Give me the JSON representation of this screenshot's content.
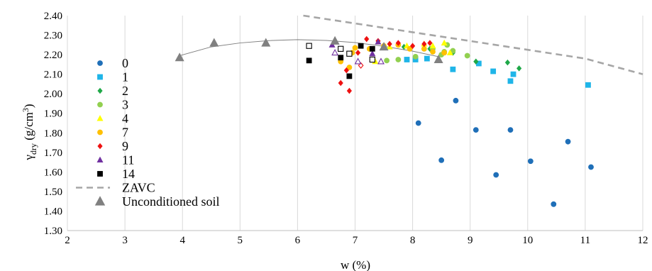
{
  "chart_data": {
    "type": "scatter",
    "xlabel": "w (%)",
    "ylabel": "γdry (g/cm3)",
    "ylabel_parts": {
      "symbol": "γ",
      "subscript": "dry",
      "unit_open": " (g/cm",
      "superscript": "3",
      "unit_close": ")"
    },
    "xlim": [
      2,
      12
    ],
    "ylim": [
      1.3,
      2.4
    ],
    "grid": "vertical",
    "legend_position": "left",
    "x_ticks": [
      2,
      3,
      4,
      5,
      6,
      7,
      8,
      9,
      10,
      11,
      12
    ],
    "x_tick_labels": [
      "2",
      "3",
      "4",
      "5",
      "6",
      "7",
      "8",
      "9",
      "10",
      "11",
      "12"
    ],
    "y_ticks": [
      1.3,
      1.4,
      1.5,
      1.6,
      1.7,
      1.8,
      1.9,
      2.0,
      2.1,
      2.2,
      2.3,
      2.4
    ],
    "y_tick_labels": [
      "1.30",
      "1.40",
      "1.50",
      "1.60",
      "1.70",
      "1.80",
      "1.90",
      "2.00",
      "2.10",
      "2.20",
      "2.30",
      "2.40"
    ],
    "series": [
      {
        "name": "0",
        "marker": "circle",
        "color": "#1f6fb8",
        "filled": true,
        "points": [
          [
            8.1,
            1.85
          ],
          [
            8.5,
            1.66
          ],
          [
            8.75,
            1.965
          ],
          [
            9.1,
            1.815
          ],
          [
            9.45,
            1.585
          ],
          [
            9.7,
            1.815
          ],
          [
            10.05,
            1.655
          ],
          [
            10.45,
            1.435
          ],
          [
            10.7,
            1.755
          ],
          [
            11.1,
            1.625
          ]
        ]
      },
      {
        "name": "1",
        "marker": "square",
        "color": "#1fb5e8",
        "filled": true,
        "points": [
          [
            7.9,
            2.175
          ],
          [
            8.05,
            2.175
          ],
          [
            8.25,
            2.18
          ],
          [
            8.7,
            2.125
          ],
          [
            9.15,
            2.155
          ],
          [
            9.4,
            2.115
          ],
          [
            9.7,
            2.065
          ],
          [
            9.75,
            2.1
          ],
          [
            11.05,
            2.045
          ]
        ]
      },
      {
        "name": "2",
        "marker": "diamond",
        "color": "#1fa848",
        "filled": true,
        "points": [
          [
            7.85,
            2.24
          ],
          [
            8.3,
            2.23
          ],
          [
            8.7,
            2.21
          ],
          [
            9.1,
            2.165
          ],
          [
            9.65,
            2.16
          ],
          [
            9.85,
            2.13
          ]
        ]
      },
      {
        "name": "3",
        "marker": "circle",
        "color": "#92d050",
        "filled": true,
        "points": [
          [
            7.55,
            2.17
          ],
          [
            7.75,
            2.175
          ],
          [
            8.05,
            2.19
          ],
          [
            8.35,
            2.23
          ],
          [
            8.5,
            2.2
          ],
          [
            8.55,
            2.215
          ],
          [
            8.6,
            2.25
          ],
          [
            8.7,
            2.22
          ],
          [
            8.95,
            2.195
          ]
        ]
      },
      {
        "name": "4",
        "marker": "triangle",
        "color": "#ffff00",
        "filled": true,
        "points": [
          [
            7.35,
            2.165
          ],
          [
            7.6,
            2.24
          ],
          [
            7.9,
            2.245
          ],
          [
            8.2,
            2.255
          ],
          [
            8.35,
            2.245
          ],
          [
            8.55,
            2.26
          ],
          [
            8.65,
            2.21
          ]
        ]
      },
      {
        "name": "7",
        "marker": "circle",
        "color": "#ffc000",
        "filled": true,
        "points": [
          [
            6.75,
            2.165
          ],
          [
            6.9,
            2.135
          ],
          [
            6.95,
            2.21
          ],
          [
            7.0,
            2.235
          ],
          [
            7.25,
            2.23
          ],
          [
            7.5,
            2.245
          ],
          [
            7.75,
            2.25
          ],
          [
            7.95,
            2.23
          ],
          [
            8.2,
            2.23
          ],
          [
            8.35,
            2.215
          ],
          [
            8.55,
            2.21
          ]
        ]
      },
      {
        "name": "9",
        "marker": "diamond",
        "color": "#ee1111",
        "filled": true,
        "points": [
          [
            6.75,
            2.055
          ],
          [
            6.85,
            2.12
          ],
          [
            6.9,
            2.015
          ],
          [
            7.05,
            2.21
          ],
          [
            7.2,
            2.28
          ],
          [
            7.4,
            2.27
          ],
          [
            7.6,
            2.255
          ],
          [
            7.75,
            2.26
          ],
          [
            8.0,
            2.245
          ],
          [
            8.2,
            2.255
          ],
          [
            8.3,
            2.26
          ]
        ]
      },
      {
        "name": "9",
        "marker": "diamond",
        "color": "#ee1111",
        "filled": false,
        "legend": false,
        "points": [
          [
            7.1,
            2.145
          ]
        ]
      },
      {
        "name": "11",
        "marker": "triangle",
        "color": "#7030a0",
        "filled": true,
        "points": [
          [
            6.6,
            2.25
          ],
          [
            7.3,
            2.205
          ],
          [
            7.4,
            2.265
          ]
        ]
      },
      {
        "name": "11",
        "marker": "triangle",
        "color": "#7030a0",
        "filled": false,
        "legend": false,
        "points": [
          [
            6.65,
            2.21
          ],
          [
            7.05,
            2.165
          ],
          [
            7.45,
            2.165
          ]
        ]
      },
      {
        "name": "14",
        "marker": "square",
        "color": "#000000",
        "filled": true,
        "points": [
          [
            6.2,
            2.17
          ],
          [
            6.75,
            2.185
          ],
          [
            6.9,
            2.09
          ],
          [
            7.1,
            2.245
          ],
          [
            7.3,
            2.23
          ]
        ]
      },
      {
        "name": "14",
        "marker": "square",
        "color": "#000000",
        "filled": false,
        "legend": false,
        "points": [
          [
            6.2,
            2.245
          ],
          [
            6.75,
            2.23
          ],
          [
            6.9,
            2.205
          ],
          [
            7.3,
            2.175
          ]
        ]
      },
      {
        "name": "ZAVC",
        "marker": "none",
        "line": "dashed",
        "color": "#a6a6a6",
        "points": [
          [
            6.1,
            2.4
          ],
          [
            7,
            2.36
          ],
          [
            8,
            2.315
          ],
          [
            9,
            2.27
          ],
          [
            10,
            2.225
          ],
          [
            11,
            2.18
          ],
          [
            12,
            2.1
          ]
        ]
      },
      {
        "name": "Unconditioned soil",
        "marker": "triangle",
        "color": "#808080",
        "filled": true,
        "points": [
          [
            3.95,
            2.185
          ],
          [
            4.55,
            2.26
          ],
          [
            5.45,
            2.26
          ],
          [
            6.65,
            2.27
          ],
          [
            7.5,
            2.24
          ],
          [
            8.45,
            2.175
          ]
        ]
      }
    ],
    "trend_curve": {
      "color": "#808080",
      "points": [
        [
          3.95,
          2.195
        ],
        [
          4.5,
          2.24
        ],
        [
          5,
          2.26
        ],
        [
          5.5,
          2.272
        ],
        [
          6,
          2.277
        ],
        [
          6.5,
          2.273
        ],
        [
          7,
          2.262
        ],
        [
          7.5,
          2.243
        ],
        [
          8,
          2.218
        ],
        [
          8.45,
          2.19
        ]
      ]
    }
  }
}
